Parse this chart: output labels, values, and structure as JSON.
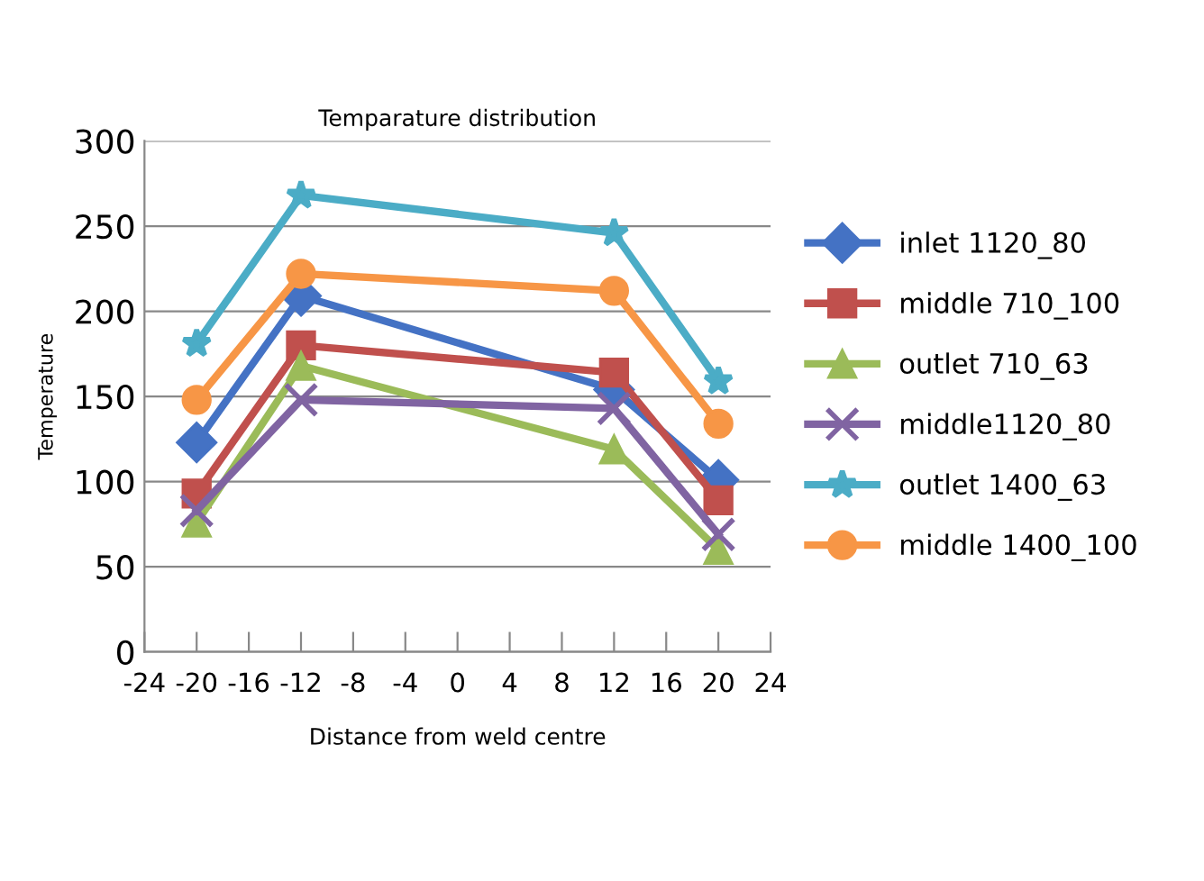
{
  "chart_data": {
    "type": "line",
    "title": "Temparature distribution",
    "xlabel": "Distance from weld centre",
    "ylabel": "Temperature",
    "x": [
      -20,
      -12,
      12,
      20
    ],
    "xlim": [
      -24,
      24
    ],
    "xticks": [
      -24,
      -20,
      -16,
      -12,
      -8,
      -4,
      0,
      4,
      8,
      12,
      16,
      20,
      24
    ],
    "ylim": [
      0,
      300
    ],
    "yticks": [
      0,
      50,
      100,
      150,
      200,
      250,
      300
    ],
    "grid": "y",
    "legend": "right",
    "series": [
      {
        "name": "inlet 1120_80",
        "color": "#4472c4",
        "marker": "diamond",
        "values": [
          123,
          209,
          154,
          101
        ]
      },
      {
        "name": "middle 710_100",
        "color": "#c0504d",
        "marker": "square",
        "values": [
          93,
          180,
          164,
          89
        ]
      },
      {
        "name": "outlet 710_63",
        "color": "#9bbb59",
        "marker": "triangle",
        "values": [
          76,
          168,
          119,
          60
        ]
      },
      {
        "name": "middle1120_80",
        "color": "#8064a2",
        "marker": "cross",
        "values": [
          83,
          148,
          143,
          69
        ]
      },
      {
        "name": "outlet 1400_63",
        "color": "#4bacc6",
        "marker": "star",
        "values": [
          181,
          268,
          246,
          159
        ]
      },
      {
        "name": "middle 1400_100",
        "color": "#f79646",
        "marker": "circle",
        "values": [
          148,
          222,
          212,
          134
        ]
      }
    ]
  }
}
